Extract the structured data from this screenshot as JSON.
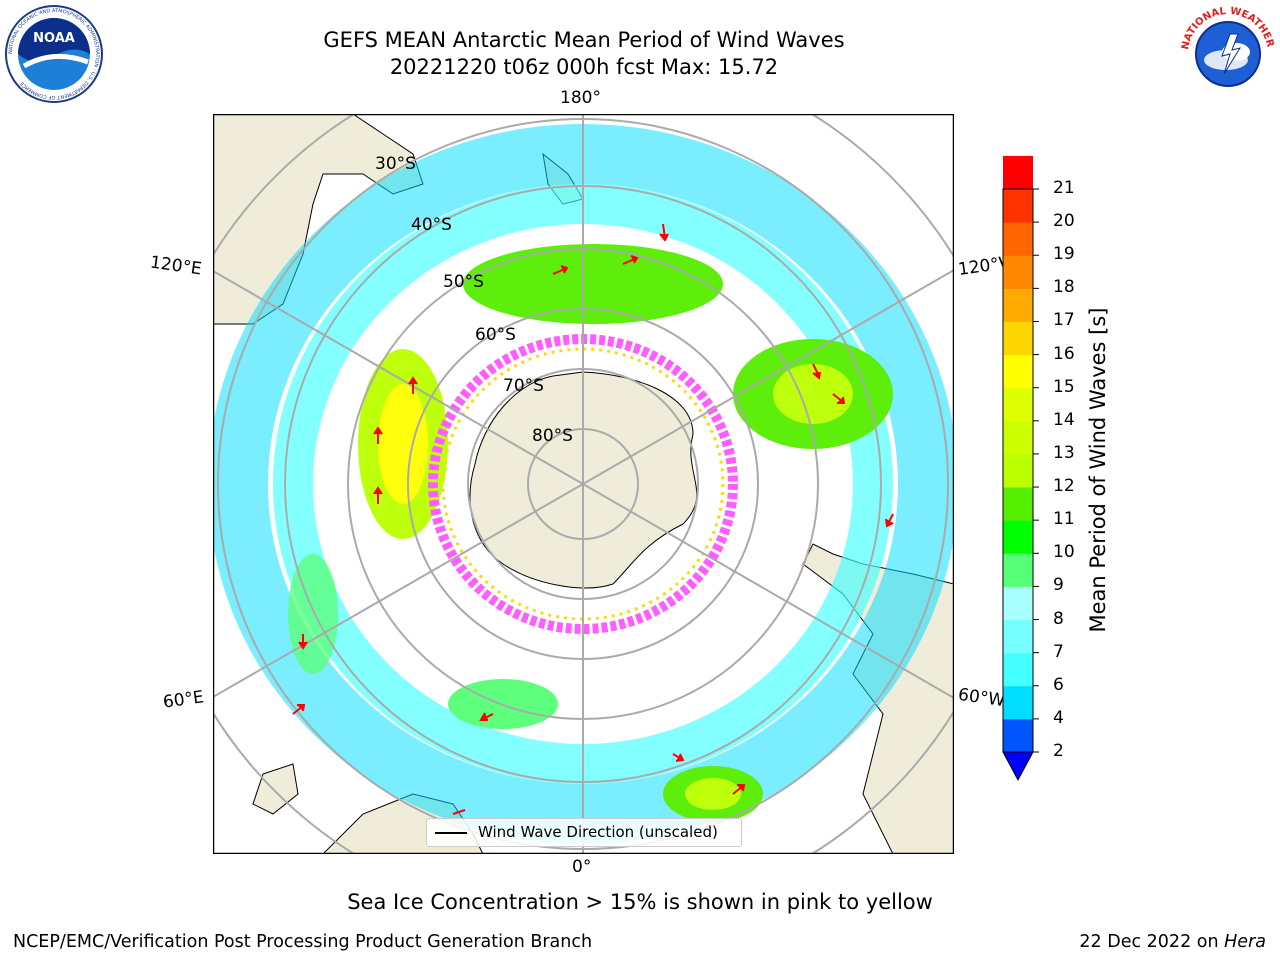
{
  "header": {
    "title_line1": "GEFS MEAN Antarctic Mean Period of Wind Waves",
    "title_line2": "20221220 t06z 000h fcst   Max: 15.72"
  },
  "logos": {
    "left": "NOAA",
    "left_ring_text": "NATIONAL OCEANIC AND ATMOSPHERIC ADMINISTRATION · U.S. DEPARTMENT OF COMMERCE",
    "right_ring_text": "NATIONAL WEATHER SERVICE"
  },
  "map": {
    "projection": "south-polar-stereographic",
    "longitude_labels": {
      "top": "180°",
      "bottom": "0°",
      "upper_left": "120°E",
      "lower_left": "60°E",
      "upper_right": "120°W",
      "lower_right": "60°W"
    },
    "latitude_labels": [
      "30°S",
      "40°S",
      "50°S",
      "60°S",
      "70°S",
      "80°S"
    ],
    "colors": {
      "land": "#efedd9",
      "coastline": "#000000",
      "gridline": "#aaaaaa",
      "arrow": "#ff0000",
      "sea_ice": "#ff55ff"
    }
  },
  "legend": {
    "label": "Wind Wave Direction (unscaled)"
  },
  "colorbar": {
    "title": "Mean Period of Wind Waves [s]",
    "ticks": [
      "2",
      "4",
      "6",
      "7",
      "8",
      "9",
      "10",
      "11",
      "12",
      "13",
      "14",
      "15",
      "16",
      "17",
      "18",
      "19",
      "20",
      "21"
    ],
    "colors": [
      "#0055ff",
      "#00ddff",
      "#44ffff",
      "#77ffff",
      "#aaffff",
      "#55ff77",
      "#00ff00",
      "#55ee00",
      "#bbff00",
      "#ccff00",
      "#ddff00",
      "#ffff00",
      "#ffd700",
      "#ffaa00",
      "#ff8800",
      "#ff6600",
      "#ff3300",
      "#ff0000"
    ],
    "extend_min_color": "#0000ff"
  },
  "notes": {
    "sea_ice": "Sea Ice Concentration > 15% is shown in pink to yellow"
  },
  "footer": {
    "left": "NCEP/EMC/Verification Post Processing Product Generation Branch",
    "date": "22 Dec 2022 on",
    "machine": "Hera"
  }
}
